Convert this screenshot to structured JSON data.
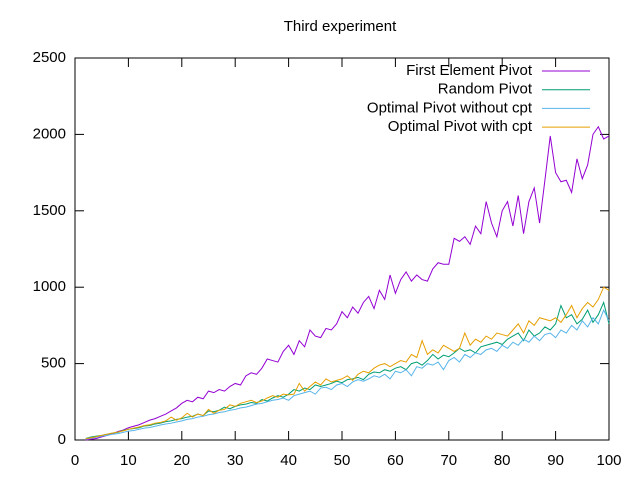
{
  "chart_data": {
    "type": "line",
    "title": "Third experiment",
    "x": [
      2,
      3,
      4,
      5,
      6,
      7,
      8,
      9,
      10,
      11,
      12,
      13,
      14,
      15,
      16,
      17,
      18,
      19,
      20,
      21,
      22,
      23,
      24,
      25,
      26,
      27,
      28,
      29,
      30,
      31,
      32,
      33,
      34,
      35,
      36,
      37,
      38,
      39,
      40,
      41,
      42,
      43,
      44,
      45,
      46,
      47,
      48,
      49,
      50,
      51,
      52,
      53,
      54,
      55,
      56,
      57,
      58,
      59,
      60,
      61,
      62,
      63,
      64,
      65,
      66,
      67,
      68,
      69,
      70,
      71,
      72,
      73,
      74,
      75,
      76,
      77,
      78,
      79,
      80,
      81,
      82,
      83,
      84,
      85,
      86,
      87,
      88,
      89,
      90,
      91,
      92,
      93,
      94,
      95,
      96,
      97,
      98,
      99,
      100
    ],
    "series": [
      {
        "name": "First Element Pivot",
        "color": "#9400d3",
        "values": [
          0,
          5,
          10,
          20,
          30,
          40,
          55,
          65,
          80,
          90,
          100,
          115,
          130,
          140,
          155,
          170,
          190,
          210,
          240,
          260,
          250,
          280,
          270,
          320,
          310,
          330,
          320,
          350,
          370,
          360,
          420,
          440,
          430,
          470,
          530,
          520,
          510,
          580,
          620,
          560,
          650,
          610,
          720,
          680,
          670,
          730,
          720,
          760,
          840,
          800,
          870,
          830,
          900,
          940,
          860,
          980,
          920,
          1080,
          960,
          1050,
          1100,
          1040,
          1080,
          1050,
          1040,
          1120,
          1160,
          1150,
          1150,
          1320,
          1300,
          1330,
          1280,
          1400,
          1350,
          1560,
          1420,
          1330,
          1500,
          1560,
          1400,
          1600,
          1350,
          1560,
          1650,
          1420,
          1700,
          1990,
          1750,
          1690,
          1700,
          1620,
          1840,
          1710,
          1800,
          2000,
          2050,
          1970,
          1990
        ]
      },
      {
        "name": "Random Pivot",
        "color": "#009e73",
        "values": [
          10,
          20,
          25,
          30,
          38,
          45,
          50,
          62,
          70,
          75,
          80,
          92,
          95,
          105,
          110,
          120,
          125,
          135,
          140,
          150,
          155,
          170,
          160,
          190,
          185,
          195,
          215,
          205,
          220,
          230,
          235,
          245,
          240,
          265,
          255,
          275,
          290,
          280,
          300,
          330,
          320,
          340,
          330,
          360,
          350,
          360,
          370,
          385,
          375,
          395,
          400,
          410,
          395,
          430,
          445,
          440,
          460,
          450,
          470,
          480,
          460,
          500,
          510,
          490,
          520,
          560,
          530,
          555,
          545,
          570,
          600,
          580,
          590,
          570,
          610,
          620,
          630,
          640,
          625,
          660,
          680,
          700,
          650,
          720,
          680,
          700,
          740,
          720,
          760,
          880,
          800,
          820,
          760,
          790,
          850,
          770,
          820,
          900,
          760
        ]
      },
      {
        "name": "Optimal Pivot without cpt",
        "color": "#56b4e9",
        "values": [
          5,
          12,
          18,
          25,
          30,
          38,
          42,
          50,
          58,
          62,
          70,
          78,
          82,
          90,
          98,
          105,
          110,
          118,
          125,
          135,
          140,
          150,
          155,
          165,
          170,
          180,
          185,
          195,
          200,
          210,
          215,
          225,
          235,
          240,
          250,
          260,
          265,
          275,
          260,
          290,
          300,
          310,
          320,
          300,
          340,
          345,
          330,
          360,
          370,
          350,
          380,
          395,
          385,
          400,
          420,
          410,
          430,
          400,
          450,
          440,
          460,
          420,
          480,
          470,
          500,
          490,
          510,
          460,
          520,
          540,
          510,
          560,
          540,
          570,
          560,
          590,
          600,
          580,
          620,
          600,
          640,
          620,
          660,
          640,
          680,
          650,
          690,
          700,
          670,
          720,
          700,
          750,
          720,
          780,
          740,
          800,
          760,
          850,
          780
        ]
      },
      {
        "name": "Optimal Pivot with cpt",
        "color": "#e69f00",
        "values": [
          8,
          15,
          22,
          30,
          38,
          45,
          52,
          60,
          70,
          78,
          85,
          95,
          100,
          110,
          115,
          125,
          150,
          130,
          145,
          175,
          150,
          170,
          160,
          200,
          175,
          195,
          200,
          230,
          220,
          240,
          250,
          260,
          245,
          255,
          275,
          290,
          280,
          300,
          295,
          300,
          370,
          320,
          350,
          380,
          360,
          400,
          380,
          390,
          400,
          420,
          390,
          430,
          450,
          440,
          470,
          490,
          500,
          480,
          500,
          520,
          510,
          560,
          540,
          650,
          560,
          590,
          570,
          620,
          600,
          580,
          600,
          700,
          620,
          660,
          640,
          680,
          660,
          700,
          690,
          680,
          720,
          760,
          700,
          780,
          750,
          800,
          790,
          780,
          800,
          770,
          820,
          880,
          800,
          860,
          900,
          870,
          920,
          1000,
          980
        ]
      }
    ],
    "xlim": [
      0,
      100
    ],
    "xticks": [
      0,
      10,
      20,
      30,
      40,
      50,
      60,
      70,
      80,
      90,
      100
    ],
    "ylim": [
      0,
      2500
    ],
    "yticks": [
      0,
      500,
      1000,
      1500,
      2000,
      2500
    ],
    "legend": "top-right"
  }
}
